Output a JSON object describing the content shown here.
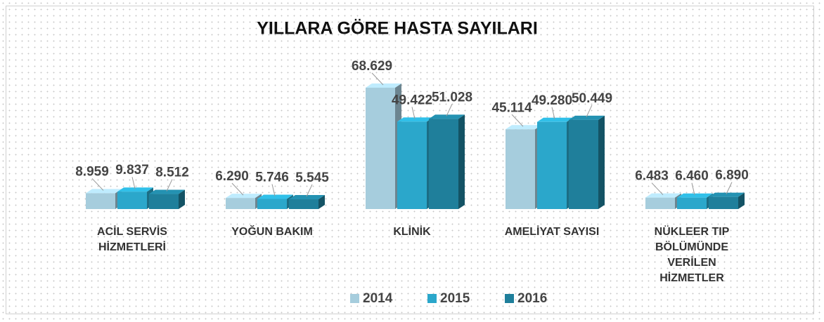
{
  "chart_data": {
    "type": "bar3d",
    "title": "YILLARA GÖRE HASTA SAYILARI",
    "categories": [
      "ACİL SERVİS HİZMETLERİ",
      "YOĞUN BAKIM",
      "KLİNİK",
      "AMELİYAT SAYISI",
      "NÜKLEER TIP BÖLÜMÜNDE VERİLEN HİZMETLER"
    ],
    "series": [
      {
        "name": "2014",
        "color": "#a6cddd",
        "values": [
          8959,
          6290,
          68629,
          45114,
          6483
        ],
        "value_labels": [
          "8.959",
          "6.290",
          "68.629",
          "45.114",
          "6.483"
        ]
      },
      {
        "name": "2015",
        "color": "#2ba7cb",
        "values": [
          9837,
          5746,
          49422,
          49280,
          6460
        ],
        "value_labels": [
          "9.837",
          "5.746",
          "49.422",
          "49.280",
          "6.460"
        ]
      },
      {
        "name": "2016",
        "color": "#1f7f9b",
        "values": [
          8512,
          5545,
          51028,
          50449,
          6890
        ],
        "value_labels": [
          "8.512",
          "5.545",
          "51.028",
          "50.449",
          "6.890"
        ]
      }
    ],
    "legend": "bottom"
  }
}
